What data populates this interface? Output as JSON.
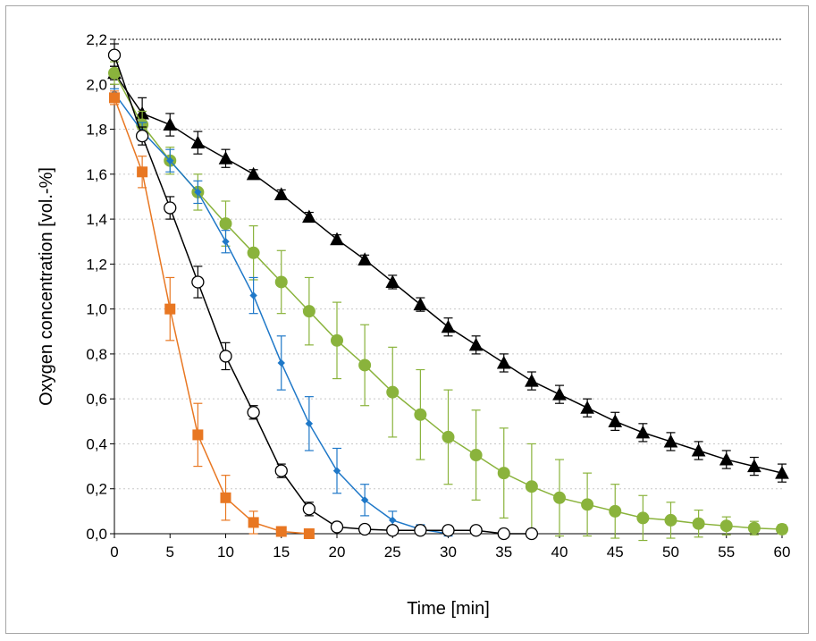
{
  "chart_data": {
    "type": "line",
    "title": "",
    "xlabel": "Time [min]",
    "ylabel": "Oxygen concentration [vol.-%]",
    "xlim": [
      0,
      60
    ],
    "ylim": [
      0,
      2.2
    ],
    "xticks": [
      "0",
      "5",
      "10",
      "15",
      "20",
      "25",
      "30",
      "35",
      "40",
      "45",
      "50",
      "55",
      "60"
    ],
    "xtick_values": [
      0,
      5,
      10,
      15,
      20,
      25,
      30,
      35,
      40,
      45,
      50,
      55,
      60
    ],
    "yticks": [
      "0,0",
      "0,2",
      "0,4",
      "0,6",
      "0,8",
      "1,0",
      "1,2",
      "1,4",
      "1,6",
      "1,8",
      "2,0",
      "2,2"
    ],
    "ytick_values": [
      0,
      0.2,
      0.4,
      0.6,
      0.8,
      1.0,
      1.2,
      1.4,
      1.6,
      1.8,
      2.0,
      2.2
    ],
    "grid": "horizontal dotted",
    "legend": "none",
    "series": [
      {
        "marker": "triangle",
        "color": "#000000",
        "fill": "#000000",
        "x": [
          0,
          2.5,
          5,
          7.5,
          10,
          12.5,
          15,
          17.5,
          20,
          22.5,
          25,
          27.5,
          30,
          32.5,
          35,
          37.5,
          40,
          42.5,
          45,
          47.5,
          50,
          52.5,
          55,
          57.5,
          60
        ],
        "y": [
          2.05,
          1.87,
          1.82,
          1.74,
          1.67,
          1.6,
          1.51,
          1.41,
          1.31,
          1.22,
          1.12,
          1.02,
          0.92,
          0.84,
          0.76,
          0.68,
          0.62,
          0.56,
          0.5,
          0.45,
          0.41,
          0.37,
          0.33,
          0.3,
          0.27
        ],
        "err": [
          0.03,
          0.07,
          0.05,
          0.05,
          0.04,
          0.02,
          0.02,
          0.02,
          0.02,
          0.02,
          0.03,
          0.03,
          0.04,
          0.04,
          0.04,
          0.04,
          0.04,
          0.04,
          0.04,
          0.04,
          0.04,
          0.04,
          0.04,
          0.04,
          0.04
        ]
      },
      {
        "marker": "circle",
        "color": "#8ab33c",
        "fill": "#8ab33c",
        "x": [
          0,
          2.5,
          5,
          7.5,
          10,
          12.5,
          15,
          17.5,
          20,
          22.5,
          25,
          27.5,
          30,
          32.5,
          35,
          37.5,
          40,
          42.5,
          45,
          47.5,
          50,
          52.5,
          55,
          57.5,
          60
        ],
        "y": [
          2.05,
          1.82,
          1.66,
          1.52,
          1.38,
          1.25,
          1.12,
          0.99,
          0.86,
          0.75,
          0.63,
          0.53,
          0.43,
          0.35,
          0.27,
          0.21,
          0.16,
          0.13,
          0.1,
          0.07,
          0.06,
          0.045,
          0.035,
          0.025,
          0.02
        ],
        "err": [
          0.05,
          0.06,
          0.06,
          0.08,
          0.1,
          0.12,
          0.14,
          0.15,
          0.17,
          0.18,
          0.2,
          0.2,
          0.21,
          0.2,
          0.2,
          0.19,
          0.17,
          0.14,
          0.12,
          0.1,
          0.08,
          0.06,
          0.04,
          0.03,
          0.02
        ]
      },
      {
        "marker": "diamond",
        "color": "#1f78c8",
        "fill": "#1f78c8",
        "x": [
          0,
          2.5,
          5,
          7.5,
          10,
          12.5,
          15,
          17.5,
          20,
          22.5,
          25,
          27.5,
          30
        ],
        "y": [
          1.96,
          1.79,
          1.66,
          1.52,
          1.3,
          1.06,
          0.76,
          0.49,
          0.28,
          0.15,
          0.06,
          0.02,
          0.0
        ],
        "err": [
          0.02,
          0.04,
          0.05,
          0.05,
          0.05,
          0.08,
          0.12,
          0.12,
          0.1,
          0.07,
          0.04,
          0.02,
          0.01
        ]
      },
      {
        "marker": "open-circle",
        "color": "#000000",
        "fill": "#ffffff",
        "x": [
          0,
          2.5,
          5,
          7.5,
          10,
          12.5,
          15,
          17.5,
          20,
          22.5,
          25,
          27.5,
          30,
          32.5,
          35,
          37.5
        ],
        "y": [
          2.13,
          1.77,
          1.45,
          1.12,
          0.79,
          0.54,
          0.28,
          0.11,
          0.03,
          0.02,
          0.015,
          0.015,
          0.015,
          0.015,
          0.0,
          0.0
        ],
        "err": [
          0.05,
          0.04,
          0.05,
          0.07,
          0.06,
          0.03,
          0.03,
          0.03,
          0.02,
          0.01,
          0.01,
          0.01,
          0.01,
          0.01,
          0.005,
          0.005
        ]
      },
      {
        "marker": "square",
        "color": "#e87722",
        "fill": "#e87722",
        "x": [
          0,
          2.5,
          5,
          7.5,
          10,
          12.5,
          15,
          17.5
        ],
        "y": [
          1.94,
          1.61,
          1.0,
          0.44,
          0.16,
          0.05,
          0.01,
          0.0
        ],
        "err": [
          0.03,
          0.07,
          0.14,
          0.14,
          0.1,
          0.05,
          0.01,
          0.005
        ]
      }
    ]
  }
}
